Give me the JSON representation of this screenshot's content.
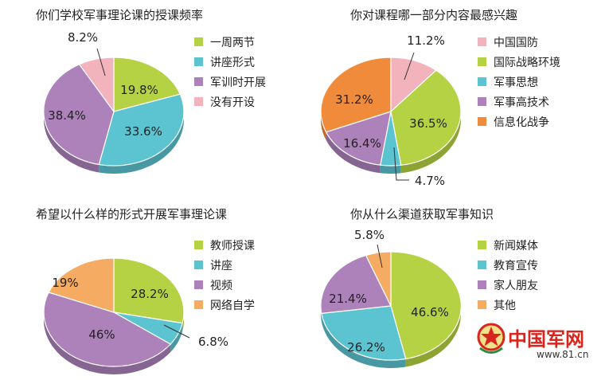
{
  "colors": {
    "green": "#b4d243",
    "teal": "#5cc3d1",
    "purple": "#ad82bb",
    "pink": "#f3b3bd",
    "orange": "#f08b3b",
    "light_orange": "#f5ab61"
  },
  "logo": {
    "name": "中国军网",
    "url": "www.81.cn",
    "icon": "star-emblem-icon"
  },
  "chart_data": [
    {
      "type": "pie",
      "title": "你们学校军事理论课的授课频率",
      "series": [
        {
          "label": "一周两节",
          "value": 19.8,
          "display": "19.8%",
          "color": "#b4d243"
        },
        {
          "label": "讲座形式",
          "value": 33.6,
          "display": "33.6%",
          "color": "#5cc3d1"
        },
        {
          "label": "军训时开展",
          "value": 38.4,
          "display": "38.4%",
          "color": "#ad82bb"
        },
        {
          "label": "没有开设",
          "value": 8.2,
          "display": "8.2%",
          "color": "#f3b3bd"
        }
      ]
    },
    {
      "type": "pie",
      "title": "你对课程哪一部分内容最感兴趣",
      "series": [
        {
          "label": "中国国防",
          "value": 11.2,
          "display": "11.2%",
          "color": "#f3b3bd"
        },
        {
          "label": "国际战略环境",
          "value": 36.5,
          "display": "36.5%",
          "color": "#b4d243"
        },
        {
          "label": "军事思想",
          "value": 4.7,
          "display": "4.7%",
          "color": "#5cc3d1"
        },
        {
          "label": "军事高技术",
          "value": 16.4,
          "display": "16.4%",
          "color": "#ad82bb"
        },
        {
          "label": "信息化战争",
          "value": 31.2,
          "display": "31.2%",
          "color": "#f08b3b"
        }
      ]
    },
    {
      "type": "pie",
      "title": "希望以什么样的形式开展军事理论课",
      "series": [
        {
          "label": "教师授课",
          "value": 28.2,
          "display": "28.2%",
          "color": "#b4d243"
        },
        {
          "label": "讲座",
          "value": 6.8,
          "display": "6.8%",
          "color": "#5cc3d1"
        },
        {
          "label": "视频",
          "value": 46,
          "display": "46%",
          "color": "#ad82bb"
        },
        {
          "label": "网络自学",
          "value": 19,
          "display": "19%",
          "color": "#f5ab61"
        }
      ]
    },
    {
      "type": "pie",
      "title": "你从什么渠道获取军事知识",
      "series": [
        {
          "label": "新闻媒体",
          "value": 46.6,
          "display": "46.6%",
          "color": "#b4d243"
        },
        {
          "label": "教育宣传",
          "value": 26.2,
          "display": "26.2%",
          "color": "#5cc3d1"
        },
        {
          "label": "家人朋友",
          "value": 21.4,
          "display": "21.4%",
          "color": "#ad82bb"
        },
        {
          "label": "其他",
          "value": 5.8,
          "display": "5.8%",
          "color": "#f5ab61"
        }
      ]
    }
  ]
}
